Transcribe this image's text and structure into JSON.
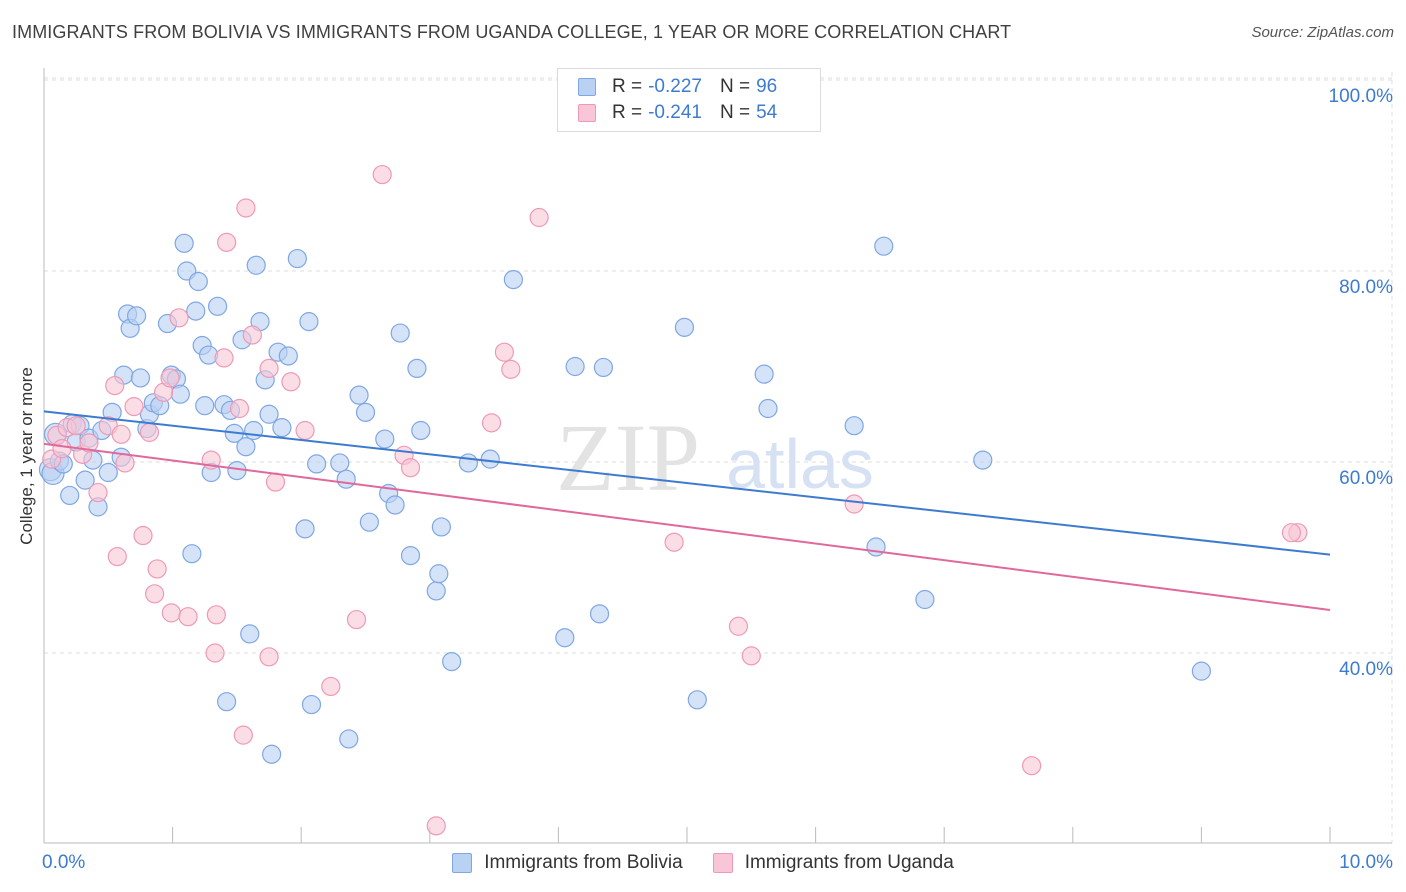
{
  "title": "IMMIGRANTS FROM BOLIVIA VS IMMIGRANTS FROM UGANDA COLLEGE, 1 YEAR OR MORE CORRELATION CHART",
  "source": "Source: ZipAtlas.com",
  "watermark": {
    "zip": "ZIP",
    "atlas": "atlas"
  },
  "legend": {
    "rows": [
      {
        "r_label": "R =",
        "r_value": "-0.227",
        "n_label": "N =",
        "n_value": "96",
        "fill": "#b9d1f3",
        "stroke": "#7fa7e3"
      },
      {
        "r_label": "R =",
        "r_value": "-0.241",
        "n_label": "N =",
        "n_value": "54",
        "fill": "#f8c6d6",
        "stroke": "#ee9ab6"
      }
    ]
  },
  "bottom_legend": {
    "items": [
      {
        "label": "Immigrants from Bolivia",
        "fill": "#b9d1f3",
        "stroke": "#7fa7e3"
      },
      {
        "label": "Immigrants from Uganda",
        "fill": "#f8c6d6",
        "stroke": "#ee9ab6"
      }
    ]
  },
  "chart_data": {
    "type": "scatter",
    "title": "IMMIGRANTS FROM BOLIVIA VS IMMIGRANTS FROM UGANDA COLLEGE, 1 YEAR OR MORE CORRELATION CHART",
    "xlabel": "",
    "ylabel": "College, 1 year or more",
    "xlim": [
      0,
      10
    ],
    "ylim": [
      20,
      102
    ],
    "x_tick_labels": [
      "0.0%",
      "10.0%"
    ],
    "y_ticks": [
      40,
      60,
      80,
      100
    ],
    "y_tick_labels": [
      "40.0%",
      "60.0%",
      "80.0%",
      "100.0%"
    ],
    "grid": true,
    "legend_position": "top-center",
    "series": [
      {
        "name": "Immigrants from Bolivia",
        "color": "#3d7bd0",
        "fill": "#b9d1f3",
        "stroke": "#7fa7e3",
        "r": -0.227,
        "n": 96,
        "trend": {
          "x": [
            0,
            10
          ],
          "y": [
            65.3,
            50.3
          ]
        },
        "points": [
          [
            0.05,
            59.2
          ],
          [
            0.07,
            58.8
          ],
          [
            0.09,
            62.9
          ],
          [
            0.12,
            60.1
          ],
          [
            0.15,
            59.8
          ],
          [
            0.2,
            56.5
          ],
          [
            0.22,
            64.0
          ],
          [
            0.25,
            62.1
          ],
          [
            0.28,
            63.8
          ],
          [
            0.32,
            58.1
          ],
          [
            0.35,
            62.5
          ],
          [
            0.38,
            60.2
          ],
          [
            0.42,
            55.3
          ],
          [
            0.45,
            63.3
          ],
          [
            0.5,
            58.9
          ],
          [
            0.53,
            65.2
          ],
          [
            0.6,
            60.5
          ],
          [
            0.62,
            69.1
          ],
          [
            0.65,
            75.5
          ],
          [
            0.67,
            74.0
          ],
          [
            0.72,
            75.3
          ],
          [
            0.75,
            68.8
          ],
          [
            0.8,
            63.5
          ],
          [
            0.82,
            65.0
          ],
          [
            0.85,
            66.2
          ],
          [
            0.9,
            65.9
          ],
          [
            0.96,
            74.5
          ],
          [
            0.99,
            69.1
          ],
          [
            1.03,
            68.7
          ],
          [
            1.06,
            67.1
          ],
          [
            1.09,
            82.9
          ],
          [
            1.11,
            80.0
          ],
          [
            1.15,
            50.4
          ],
          [
            1.18,
            75.8
          ],
          [
            1.2,
            78.9
          ],
          [
            1.23,
            72.2
          ],
          [
            1.25,
            65.9
          ],
          [
            1.28,
            71.2
          ],
          [
            1.3,
            58.9
          ],
          [
            1.35,
            76.3
          ],
          [
            1.4,
            66.0
          ],
          [
            1.42,
            34.9
          ],
          [
            1.45,
            65.4
          ],
          [
            1.48,
            63.0
          ],
          [
            1.5,
            59.1
          ],
          [
            1.54,
            72.8
          ],
          [
            1.57,
            61.6
          ],
          [
            1.6,
            42.0
          ],
          [
            1.63,
            63.3
          ],
          [
            1.65,
            80.6
          ],
          [
            1.68,
            74.7
          ],
          [
            1.72,
            68.6
          ],
          [
            1.75,
            65.0
          ],
          [
            1.77,
            29.4
          ],
          [
            1.82,
            71.5
          ],
          [
            1.85,
            63.6
          ],
          [
            1.9,
            71.1
          ],
          [
            1.97,
            81.3
          ],
          [
            2.03,
            53.0
          ],
          [
            2.06,
            74.7
          ],
          [
            2.08,
            34.6
          ],
          [
            2.12,
            59.8
          ],
          [
            2.3,
            59.9
          ],
          [
            2.35,
            58.2
          ],
          [
            2.37,
            31.0
          ],
          [
            2.45,
            67.0
          ],
          [
            2.5,
            65.2
          ],
          [
            2.53,
            53.7
          ],
          [
            2.65,
            62.4
          ],
          [
            2.68,
            56.7
          ],
          [
            2.73,
            55.5
          ],
          [
            2.77,
            73.5
          ],
          [
            2.85,
            50.2
          ],
          [
            2.9,
            69.8
          ],
          [
            2.93,
            63.3
          ],
          [
            3.05,
            46.5
          ],
          [
            3.07,
            48.3
          ],
          [
            3.09,
            53.2
          ],
          [
            3.17,
            39.1
          ],
          [
            3.3,
            59.9
          ],
          [
            3.47,
            60.3
          ],
          [
            3.65,
            79.1
          ],
          [
            4.05,
            41.6
          ],
          [
            4.13,
            70.0
          ],
          [
            4.32,
            44.1
          ],
          [
            4.35,
            69.9
          ],
          [
            4.98,
            74.1
          ],
          [
            5.08,
            35.1
          ],
          [
            5.6,
            69.2
          ],
          [
            5.63,
            65.6
          ],
          [
            6.3,
            63.8
          ],
          [
            6.47,
            51.1
          ],
          [
            6.53,
            82.6
          ],
          [
            6.85,
            45.6
          ],
          [
            7.3,
            60.2
          ],
          [
            9.0,
            38.1
          ]
        ]
      },
      {
        "name": "Immigrants from Uganda",
        "color": "#e0689a",
        "fill": "#f8c6d6",
        "stroke": "#ee9ab6",
        "r": -0.241,
        "n": 54,
        "trend": {
          "x": [
            0,
            10
          ],
          "y": [
            61.9,
            44.5
          ]
        },
        "points": [
          [
            0.06,
            60.3
          ],
          [
            0.1,
            62.8
          ],
          [
            0.14,
            61.4
          ],
          [
            0.18,
            63.6
          ],
          [
            0.25,
            63.8
          ],
          [
            0.3,
            60.8
          ],
          [
            0.35,
            62.0
          ],
          [
            0.42,
            56.8
          ],
          [
            0.5,
            63.8
          ],
          [
            0.55,
            68.0
          ],
          [
            0.57,
            50.1
          ],
          [
            0.6,
            62.9
          ],
          [
            0.63,
            59.9
          ],
          [
            0.7,
            65.8
          ],
          [
            0.77,
            52.3
          ],
          [
            0.82,
            63.1
          ],
          [
            0.86,
            46.2
          ],
          [
            0.88,
            48.8
          ],
          [
            0.93,
            67.3
          ],
          [
            0.98,
            68.8
          ],
          [
            0.99,
            44.2
          ],
          [
            1.05,
            75.1
          ],
          [
            1.12,
            43.8
          ],
          [
            1.3,
            60.2
          ],
          [
            1.33,
            40.0
          ],
          [
            1.34,
            44.0
          ],
          [
            1.4,
            70.9
          ],
          [
            1.42,
            83.0
          ],
          [
            1.52,
            65.6
          ],
          [
            1.55,
            31.4
          ],
          [
            1.57,
            86.6
          ],
          [
            1.62,
            73.3
          ],
          [
            1.75,
            69.8
          ],
          [
            1.75,
            39.6
          ],
          [
            1.8,
            57.9
          ],
          [
            1.92,
            68.4
          ],
          [
            2.03,
            63.3
          ],
          [
            2.23,
            36.5
          ],
          [
            2.43,
            43.5
          ],
          [
            2.63,
            90.1
          ],
          [
            2.8,
            60.7
          ],
          [
            2.85,
            59.4
          ],
          [
            3.05,
            21.9
          ],
          [
            3.48,
            64.1
          ],
          [
            3.58,
            71.5
          ],
          [
            3.63,
            69.7
          ],
          [
            3.85,
            85.6
          ],
          [
            4.9,
            51.6
          ],
          [
            5.4,
            42.8
          ],
          [
            5.5,
            39.7
          ],
          [
            6.3,
            55.6
          ],
          [
            7.68,
            28.2
          ],
          [
            9.75,
            52.6
          ],
          [
            9.7,
            52.6
          ]
        ]
      }
    ]
  }
}
